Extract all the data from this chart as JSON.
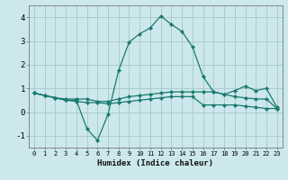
{
  "xlabel": "Humidex (Indice chaleur)",
  "background_color": "#cce8ec",
  "grid_color": "#aacccc",
  "line_color": "#1a7a6e",
  "xlim": [
    -0.5,
    23.5
  ],
  "ylim": [
    -1.5,
    4.5
  ],
  "x_ticks": [
    0,
    1,
    2,
    3,
    4,
    5,
    6,
    7,
    8,
    9,
    10,
    11,
    12,
    13,
    14,
    15,
    16,
    17,
    18,
    19,
    20,
    21,
    22,
    23
  ],
  "y_ticks": [
    -1,
    0,
    1,
    2,
    3,
    4
  ],
  "series": [
    [
      0.8,
      0.7,
      0.6,
      0.5,
      0.5,
      -0.7,
      -1.2,
      -0.1,
      1.75,
      2.95,
      3.3,
      3.55,
      4.05,
      3.7,
      3.4,
      2.75,
      1.5,
      0.85,
      0.75,
      0.9,
      1.1,
      0.9,
      1.0,
      0.2
    ],
    [
      0.8,
      0.7,
      0.6,
      0.55,
      0.55,
      0.55,
      0.45,
      0.45,
      0.55,
      0.65,
      0.7,
      0.75,
      0.8,
      0.85,
      0.85,
      0.85,
      0.85,
      0.85,
      0.75,
      0.65,
      0.6,
      0.55,
      0.55,
      0.15
    ],
    [
      0.8,
      0.7,
      0.6,
      0.5,
      0.45,
      0.4,
      0.4,
      0.35,
      0.4,
      0.45,
      0.5,
      0.55,
      0.6,
      0.65,
      0.65,
      0.65,
      0.3,
      0.3,
      0.3,
      0.3,
      0.25,
      0.2,
      0.15,
      0.15
    ]
  ]
}
